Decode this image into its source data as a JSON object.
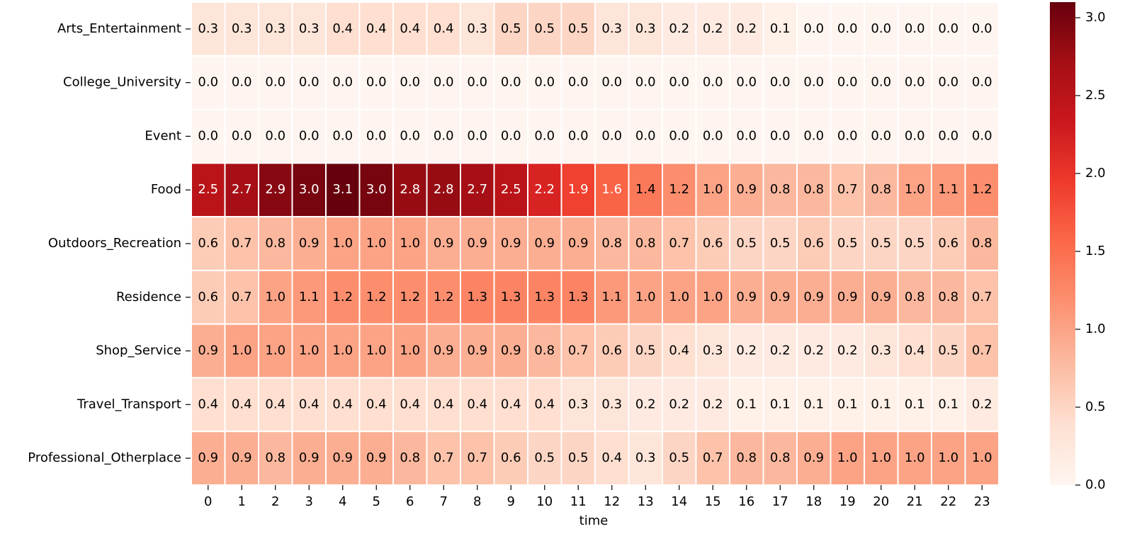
{
  "chart_data": {
    "type": "heatmap",
    "x_label": "time",
    "x": [
      0,
      1,
      2,
      3,
      4,
      5,
      6,
      7,
      8,
      9,
      10,
      11,
      12,
      13,
      14,
      15,
      16,
      17,
      18,
      19,
      20,
      21,
      22,
      23
    ],
    "colors": [
      "#fff5f0",
      "#fee0d2",
      "#fcbba1",
      "#fc9272",
      "#fb6a4a",
      "#ef3b2c",
      "#cb181d",
      "#a50f15",
      "#67000d"
    ],
    "zlim": [
      0,
      3.1
    ],
    "zticks": [
      {
        "value": 0,
        "label": "0.0"
      },
      0.5,
      {
        "value": 1,
        "label": "1.0"
      },
      1.5,
      {
        "value": 2,
        "label": "2.0"
      },
      2.5,
      {
        "value": 3,
        "label": "3.0"
      }
    ],
    "series": [
      {
        "name": "Arts_Entertainment",
        "values": [
          0.3,
          0.3,
          0.3,
          0.3,
          0.4,
          0.4,
          0.4,
          0.4,
          0.3,
          0.5,
          0.5,
          0.5,
          0.3,
          0.3,
          0.2,
          0.2,
          0.2,
          0.1,
          0,
          0,
          0,
          0,
          0,
          0
        ],
        "value_labels": [
          "0.3",
          "0.3",
          "0.3",
          "0.3",
          "0.4",
          "0.4",
          "0.4",
          "0.4",
          "0.3",
          "0.5",
          "0.5",
          "0.5",
          "0.3",
          "0.3",
          "0.2",
          "0.2",
          "0.2",
          "0.1",
          "0.0",
          "0.0",
          "0.0",
          "0.0",
          "0.0",
          "0.0"
        ]
      },
      {
        "name": "College_University",
        "values": [
          0,
          0,
          0,
          0,
          0,
          0,
          0,
          0,
          0,
          0,
          0,
          0,
          0,
          0,
          0,
          0,
          0,
          0,
          0,
          0,
          0,
          0,
          0,
          0
        ],
        "value_labels": [
          "0.0",
          "0.0",
          "0.0",
          "0.0",
          "0.0",
          "0.0",
          "0.0",
          "0.0",
          "0.0",
          "0.0",
          "0.0",
          "0.0",
          "0.0",
          "0.0",
          "0.0",
          "0.0",
          "0.0",
          "0.0",
          "0.0",
          "0.0",
          "0.0",
          "0.0",
          "0.0",
          "0.0"
        ]
      },
      {
        "name": "Event",
        "values": [
          0,
          0,
          0,
          0,
          0,
          0,
          0,
          0,
          0,
          0,
          0,
          0,
          0,
          0,
          0,
          0,
          0,
          0,
          0,
          0,
          0,
          0,
          0,
          0
        ],
        "value_labels": [
          "0.0",
          "0.0",
          "0.0",
          "0.0",
          "0.0",
          "0.0",
          "0.0",
          "0.0",
          "0.0",
          "0.0",
          "0.0",
          "0.0",
          "0.0",
          "0.0",
          "0.0",
          "0.0",
          "0.0",
          "0.0",
          "0.0",
          "0.0",
          "0.0",
          "0.0",
          "0.0",
          "0.0"
        ]
      },
      {
        "name": "Food",
        "values": [
          2.5,
          2.7,
          2.9,
          3,
          3.1,
          3,
          2.8,
          2.8,
          2.7,
          2.5,
          2.2,
          1.9,
          1.6,
          1.4,
          1.2,
          1,
          0.9,
          0.8,
          0.8,
          0.7,
          0.8,
          1,
          1.1,
          1.2
        ],
        "value_labels": [
          "2.5",
          "2.7",
          "2.9",
          "3.0",
          "3.1",
          "3.0",
          "2.8",
          "2.8",
          "2.7",
          "2.5",
          "2.2",
          "1.9",
          "1.6",
          "1.4",
          "1.2",
          "1.0",
          "0.9",
          "0.8",
          "0.8",
          "0.7",
          "0.8",
          "1.0",
          "1.1",
          "1.2"
        ]
      },
      {
        "name": "Outdoors_Recreation",
        "values": [
          0.6,
          0.7,
          0.8,
          0.9,
          1,
          1,
          1,
          0.9,
          0.9,
          0.9,
          0.9,
          0.9,
          0.8,
          0.8,
          0.7,
          0.6,
          0.5,
          0.5,
          0.6,
          0.5,
          0.5,
          0.5,
          0.6,
          0.8
        ],
        "value_labels": [
          "0.6",
          "0.7",
          "0.8",
          "0.9",
          "1.0",
          "1.0",
          "1.0",
          "0.9",
          "0.9",
          "0.9",
          "0.9",
          "0.9",
          "0.8",
          "0.8",
          "0.7",
          "0.6",
          "0.5",
          "0.5",
          "0.6",
          "0.5",
          "0.5",
          "0.5",
          "0.6",
          "0.8"
        ]
      },
      {
        "name": "Residence",
        "values": [
          0.6,
          0.7,
          1,
          1.1,
          1.2,
          1.2,
          1.2,
          1.2,
          1.3,
          1.3,
          1.3,
          1.3,
          1.1,
          1,
          1,
          1,
          0.9,
          0.9,
          0.9,
          0.9,
          0.9,
          0.8,
          0.8,
          0.7
        ],
        "value_labels": [
          "0.6",
          "0.7",
          "1.0",
          "1.1",
          "1.2",
          "1.2",
          "1.2",
          "1.2",
          "1.3",
          "1.3",
          "1.3",
          "1.3",
          "1.1",
          "1.0",
          "1.0",
          "1.0",
          "0.9",
          "0.9",
          "0.9",
          "0.9",
          "0.9",
          "0.8",
          "0.8",
          "0.7"
        ]
      },
      {
        "name": "Shop_Service",
        "values": [
          0.9,
          1,
          1,
          1,
          1,
          1,
          1,
          0.9,
          0.9,
          0.9,
          0.8,
          0.7,
          0.6,
          0.5,
          0.4,
          0.3,
          0.2,
          0.2,
          0.2,
          0.2,
          0.3,
          0.4,
          0.5,
          0.7
        ],
        "value_labels": [
          "0.9",
          "1.0",
          "1.0",
          "1.0",
          "1.0",
          "1.0",
          "1.0",
          "0.9",
          "0.9",
          "0.9",
          "0.8",
          "0.7",
          "0.6",
          "0.5",
          "0.4",
          "0.3",
          "0.2",
          "0.2",
          "0.2",
          "0.2",
          "0.3",
          "0.4",
          "0.5",
          "0.7"
        ]
      },
      {
        "name": "Travel_Transport",
        "values": [
          0.4,
          0.4,
          0.4,
          0.4,
          0.4,
          0.4,
          0.4,
          0.4,
          0.4,
          0.4,
          0.4,
          0.3,
          0.3,
          0.2,
          0.2,
          0.2,
          0.1,
          0.1,
          0.1,
          0.1,
          0.1,
          0.1,
          0.1,
          0.2
        ],
        "value_labels": [
          "0.4",
          "0.4",
          "0.4",
          "0.4",
          "0.4",
          "0.4",
          "0.4",
          "0.4",
          "0.4",
          "0.4",
          "0.4",
          "0.3",
          "0.3",
          "0.2",
          "0.2",
          "0.2",
          "0.1",
          "0.1",
          "0.1",
          "0.1",
          "0.1",
          "0.1",
          "0.1",
          "0.2"
        ]
      },
      {
        "name": "Professional_Otherplace",
        "values": [
          0.9,
          0.9,
          0.8,
          0.9,
          0.9,
          0.9,
          0.8,
          0.7,
          0.7,
          0.6,
          0.5,
          0.5,
          0.4,
          0.3,
          0.5,
          0.7,
          0.8,
          0.8,
          0.9,
          1,
          1,
          1,
          1,
          1
        ],
        "value_labels": [
          "0.9",
          "0.9",
          "0.8",
          "0.9",
          "0.9",
          "0.9",
          "0.8",
          "0.7",
          "0.7",
          "0.6",
          "0.5",
          "0.5",
          "0.4",
          "0.3",
          "0.5",
          "0.7",
          "0.8",
          "0.8",
          "0.9",
          "1.0",
          "1.0",
          "1.0",
          "1.0",
          "1.0"
        ]
      }
    ]
  }
}
